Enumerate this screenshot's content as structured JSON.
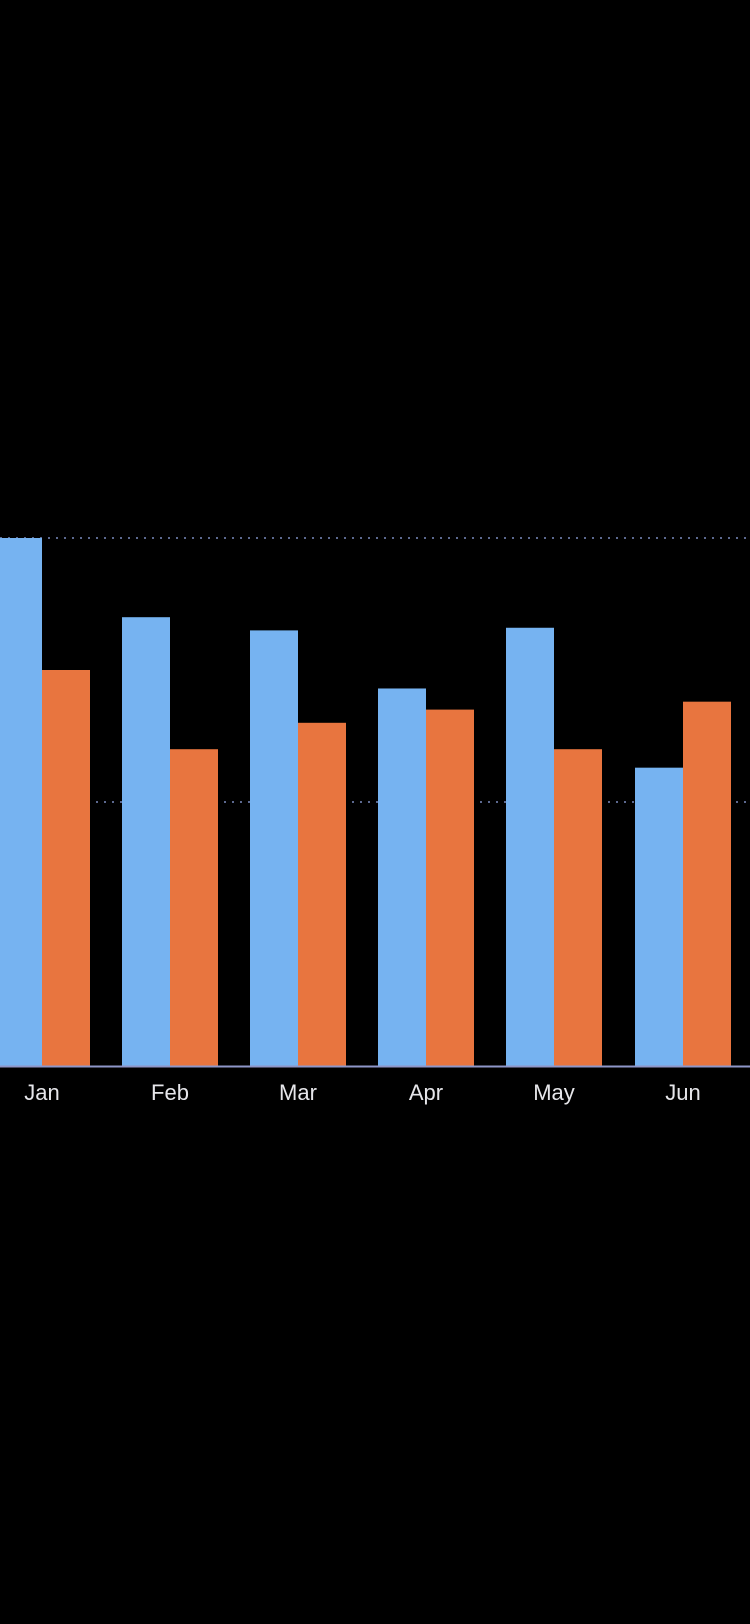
{
  "chart_data": {
    "type": "bar",
    "categories": [
      "Jan",
      "Feb",
      "Mar",
      "Apr",
      "May",
      "Jun"
    ],
    "series": [
      {
        "values": [
          100,
          85,
          82.5,
          71.5,
          83,
          56.5
        ],
        "color": "#76b3f1"
      },
      {
        "values": [
          75,
          60,
          65,
          67.5,
          60,
          69
        ],
        "color": "#e8753f"
      }
    ],
    "ylim": [
      0,
      100
    ],
    "gridlines": [
      50,
      100
    ],
    "grid": true,
    "gridline_color": "#7a8cc0",
    "axis_line_color": "#8e96c8",
    "title": "",
    "xlabel": "",
    "ylabel": ""
  }
}
